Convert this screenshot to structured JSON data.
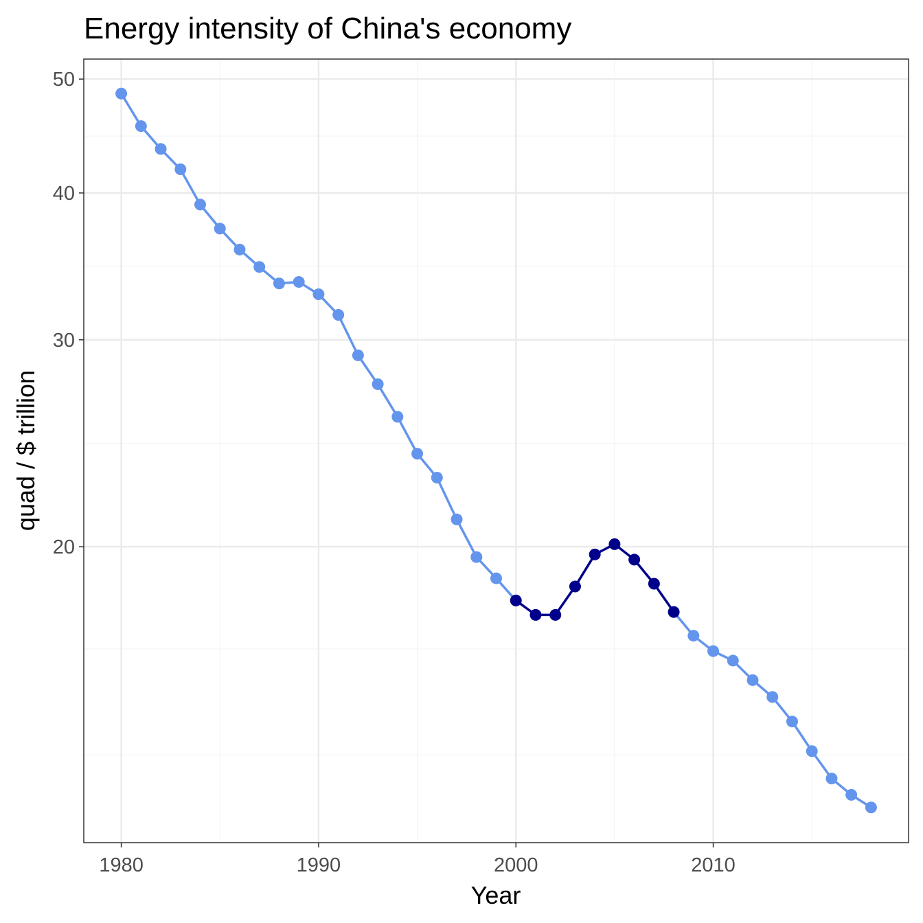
{
  "chart_data": {
    "type": "line",
    "title": "Energy intensity of China's economy",
    "xlabel": "Year",
    "ylabel": "quad / $ trillion",
    "y_scale": "log",
    "xlim": [
      1978.1,
      2019.9
    ],
    "ylim": [
      11.2,
      52
    ],
    "x_ticks": [
      1980,
      1990,
      2000,
      2010
    ],
    "x_tick_labels": [
      "1980",
      "1990",
      "2000",
      "2010"
    ],
    "y_ticks": [
      20,
      30,
      40,
      50
    ],
    "y_tick_labels": [
      "20",
      "30",
      "40",
      "50"
    ],
    "grid": true,
    "legend": "none",
    "colors": {
      "normal": "#6495ED",
      "highlight": "#00008B"
    },
    "highlight_range": [
      2000,
      2008
    ],
    "x": [
      1980,
      1981,
      1982,
      1983,
      1984,
      1985,
      1986,
      1987,
      1988,
      1989,
      1990,
      1991,
      1992,
      1993,
      1994,
      1995,
      1996,
      1997,
      1998,
      1999,
      2000,
      2001,
      2002,
      2003,
      2004,
      2005,
      2006,
      2007,
      2008,
      2009,
      2010,
      2011,
      2012,
      2013,
      2014,
      2015,
      2016,
      2017,
      2018
    ],
    "y": [
      48.6,
      45.6,
      43.6,
      41.9,
      39.1,
      37.3,
      35.8,
      34.6,
      33.5,
      33.6,
      32.8,
      31.5,
      29.1,
      27.5,
      25.8,
      24.0,
      22.9,
      21.1,
      19.6,
      18.8,
      18.0,
      17.5,
      17.5,
      18.5,
      19.7,
      20.1,
      19.5,
      18.6,
      17.6,
      16.8,
      16.3,
      16.0,
      15.4,
      14.9,
      14.2,
      13.4,
      12.7,
      12.3,
      12.0
    ]
  }
}
